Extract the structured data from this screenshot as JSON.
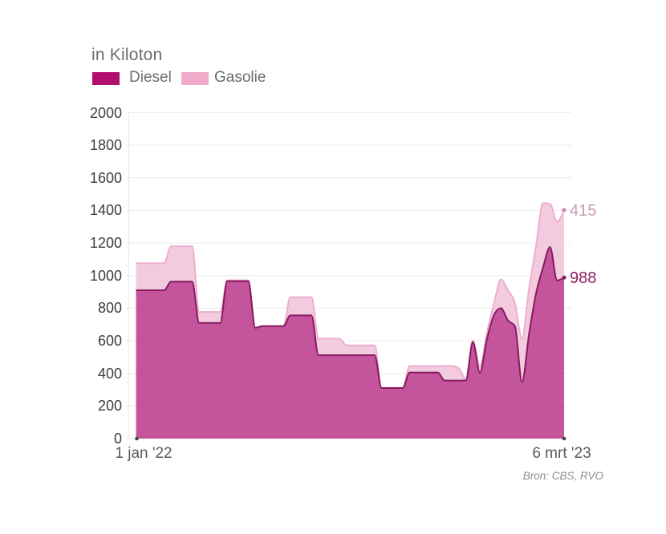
{
  "chart_data": {
    "type": "area",
    "stacked": true,
    "title": "in Kiloton",
    "legend": [
      {
        "label": "Diesel",
        "swatch_color": "#b00f70"
      },
      {
        "label": "Gasolie",
        "swatch_color": "#efaac9"
      }
    ],
    "x_axis": {
      "start_label": "1 jan '22",
      "end_label": "6 mrt '23"
    },
    "y_axis": {
      "ticks": [
        0,
        200,
        400,
        600,
        800,
        1000,
        1200,
        1400,
        1600,
        1800,
        2000
      ],
      "range": [
        0,
        2000
      ]
    },
    "grid": true,
    "grid_color": "#ececec",
    "axis_line_color": "#e4e4e4",
    "axis_dot_color": "#454545",
    "series": [
      {
        "name": "Diesel",
        "fill": "#c4559d",
        "line": "#861b5d",
        "end_label": {
          "value": 988,
          "text_color": "#8c215f",
          "dot_color": "#8c215f"
        },
        "values": [
          910,
          910,
          910,
          910,
          910,
          963,
          963,
          963,
          963,
          710,
          710,
          710,
          710,
          966,
          966,
          966,
          966,
          680,
          690,
          690,
          690,
          690,
          756,
          756,
          756,
          756,
          512,
          512,
          512,
          512,
          512,
          512,
          512,
          512,
          512,
          310,
          310,
          310,
          310,
          405,
          405,
          405,
          405,
          405,
          356,
          356,
          356,
          357,
          592,
          405,
          610,
          757,
          800,
          725,
          690,
          347,
          640,
          890,
          1050,
          1175,
          970,
          988
        ]
      },
      {
        "name": "Gasolie",
        "fill": "#f3cbdf",
        "line": "#eeaed0",
        "end_label": {
          "value": 415,
          "text_color": "#cb9bb2",
          "dot_color": "#da85b4"
        },
        "values": [
          166,
          166,
          166,
          166,
          166,
          217,
          217,
          217,
          217,
          67,
          67,
          67,
          67,
          5,
          5,
          5,
          5,
          0,
          0,
          0,
          0,
          0,
          112,
          112,
          112,
          112,
          101,
          101,
          101,
          101,
          60,
          60,
          60,
          60,
          60,
          2,
          2,
          2,
          2,
          40,
          40,
          40,
          40,
          40,
          90,
          90,
          75,
          8,
          10,
          40,
          40,
          70,
          177,
          185,
          140,
          266,
          280,
          290,
          395,
          265,
          360,
          415
        ]
      }
    ],
    "source": "Bron: CBS, RVO"
  }
}
